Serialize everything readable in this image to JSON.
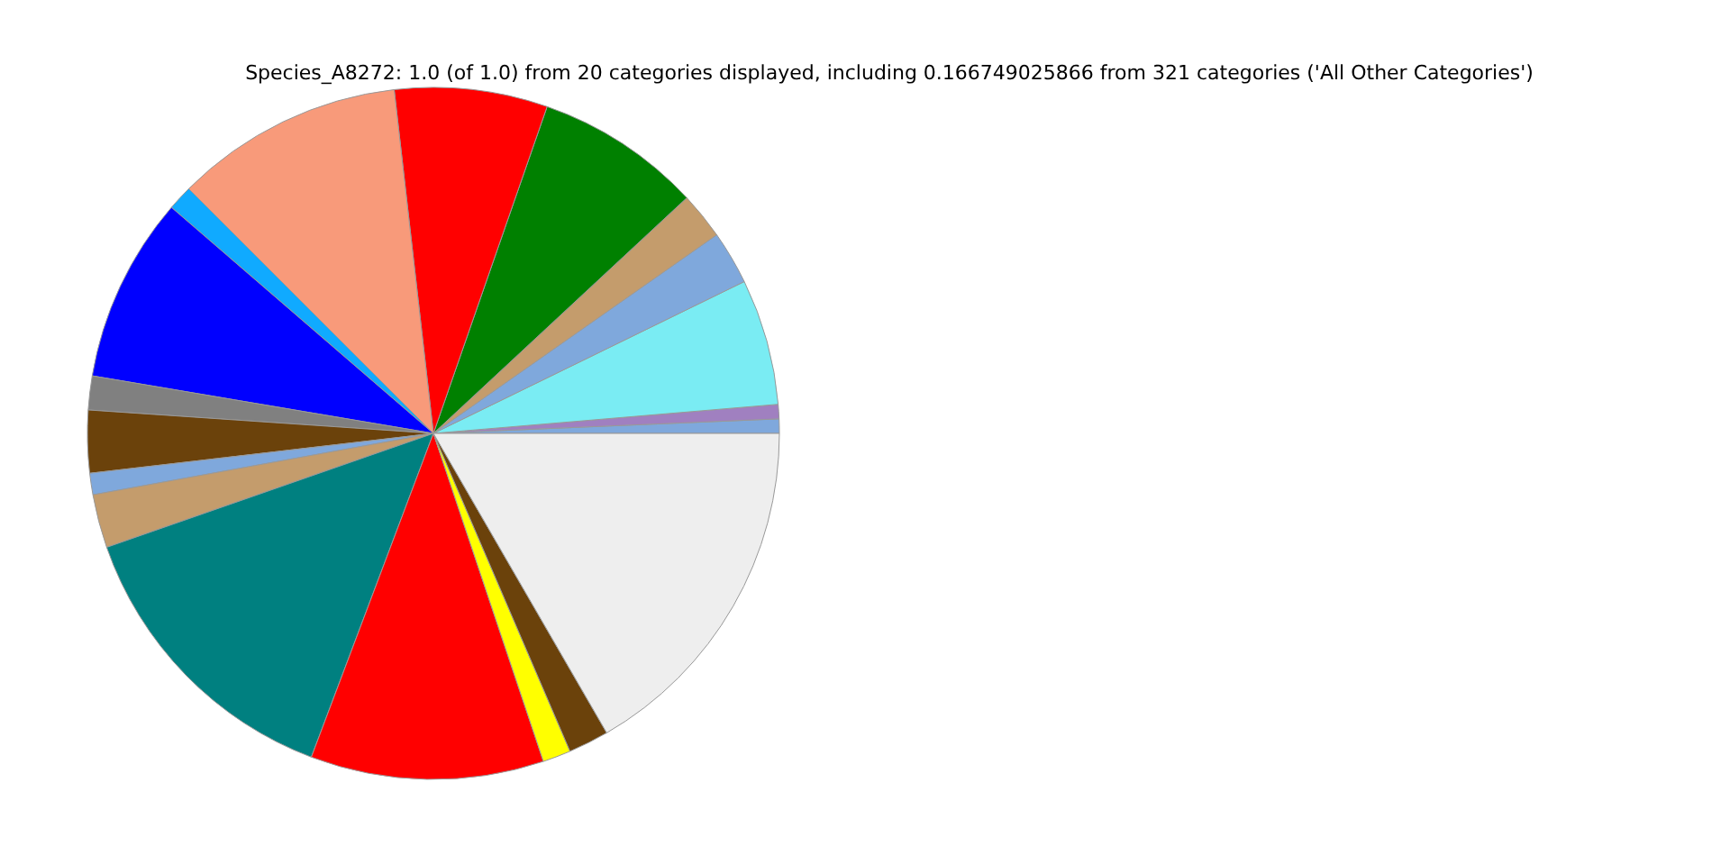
{
  "chart_data": {
    "type": "pie",
    "title": "Species_A8272: 1.0 (of 1.0) from 20 categories displayed, including 0.166749025866 from 321 categories ('All Other Categories')",
    "categories": [
      null,
      null,
      null,
      null,
      null,
      null,
      null,
      null,
      null,
      null,
      null,
      null,
      null,
      null,
      null,
      null,
      null,
      null,
      null
    ],
    "values": [
      0.67,
      0.67,
      5.89,
      2.5,
      2.19,
      7.75,
      7.14,
      10.69,
      1.17,
      8.67,
      1.58,
      2.92,
      1.0,
      2.5,
      13.92,
      10.89,
      1.31,
      1.89,
      16.65
    ],
    "colors": [
      "#7fa8dc",
      "#a080c0",
      "#7aecf3",
      "#7fa8dc",
      "#c49c6c",
      "#008000",
      "#ff0000",
      "#f89a7a",
      "#10aaff",
      "#0000ff",
      "#808080",
      "#6b420b",
      "#7fa8dc",
      "#c49c6c",
      "#008080",
      "#ff0000",
      "#ffff00",
      "#6b420b",
      "#eeeeee"
    ]
  }
}
